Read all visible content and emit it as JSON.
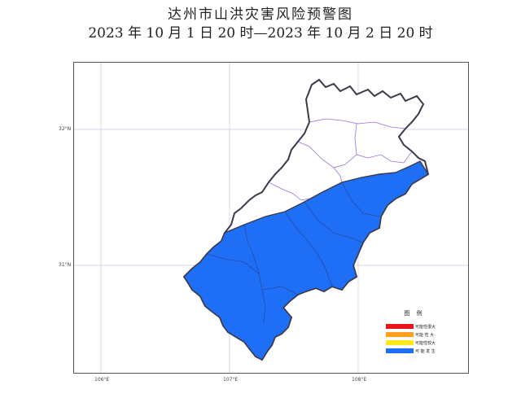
{
  "title": {
    "line1": "达州市山洪灾害风险预警图",
    "line2": "2023 年 10 月 1 日 20 时—2023 年 10 月 2 日 20 时"
  },
  "map": {
    "latitude_labels": [
      "32°N",
      "31°N"
    ],
    "longitude_labels": [
      "106°E",
      "107°E",
      "108°E"
    ],
    "region_colors": {
      "warning_zone": "#1e6ff5",
      "no_warning_zone": "#ffffff",
      "outer_boundary": "#3a3a4a",
      "county_boundary": "#7b3fd1",
      "gridline": "#c9c9e0"
    }
  },
  "legend": {
    "title": "图 例",
    "items": [
      {
        "label": "可能性很大",
        "color": "#e8141b"
      },
      {
        "label": "可能 性 大",
        "color": "#ff9f1c"
      },
      {
        "label": "可能性较大",
        "color": "#ffe81a"
      },
      {
        "label": "可 能 发 生",
        "color": "#1e6ff5"
      }
    ]
  }
}
